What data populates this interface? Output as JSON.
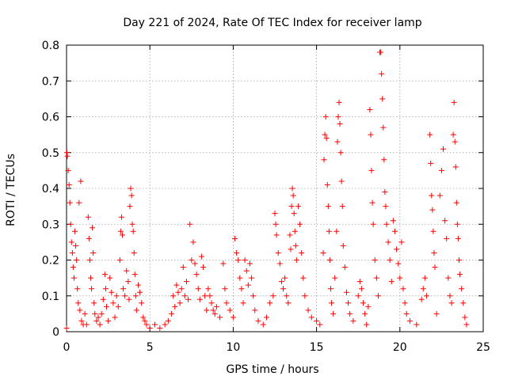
{
  "chart_data": {
    "type": "scatter",
    "title": "Day 221 of 2024, Rate Of TEC Index for receiver lamp",
    "xlabel": "GPS time / hours",
    "ylabel": "ROTI / TECUs",
    "xlim": [
      0,
      25
    ],
    "ylim": [
      0,
      0.8
    ],
    "xticks": [
      0,
      5,
      10,
      15,
      20,
      25
    ],
    "xtick_labels": [
      "0",
      "5",
      "10",
      "15",
      "20",
      "25"
    ],
    "yticks": [
      0,
      0.1,
      0.2,
      0.3,
      0.4,
      0.5,
      0.6,
      0.7,
      0.8
    ],
    "ytick_labels": [
      "0",
      "0.1",
      "0.2",
      "0.3",
      "0.4",
      "0.5",
      "0.6",
      "0.7",
      "0.8"
    ],
    "grid": true,
    "marker": "+",
    "color": "#ff0000",
    "series": [
      {
        "name": "ROTI",
        "points": [
          [
            0.0,
            0.01
          ],
          [
            0.02,
            0.5
          ],
          [
            0.05,
            0.49
          ],
          [
            0.1,
            0.45
          ],
          [
            0.15,
            0.41
          ],
          [
            0.2,
            0.36
          ],
          [
            0.25,
            0.3
          ],
          [
            0.3,
            0.25
          ],
          [
            0.35,
            0.22
          ],
          [
            0.4,
            0.18
          ],
          [
            0.45,
            0.15
          ],
          [
            0.5,
            0.28
          ],
          [
            0.55,
            0.24
          ],
          [
            0.6,
            0.2
          ],
          [
            0.65,
            0.12
          ],
          [
            0.7,
            0.08
          ],
          [
            0.75,
            0.36
          ],
          [
            0.8,
            0.06
          ],
          [
            0.85,
            0.42
          ],
          [
            0.9,
            0.03
          ],
          [
            1.0,
            0.02
          ],
          [
            1.1,
            0.05
          ],
          [
            1.2,
            0.02
          ],
          [
            1.3,
            0.32
          ],
          [
            1.35,
            0.26
          ],
          [
            1.4,
            0.2
          ],
          [
            1.45,
            0.15
          ],
          [
            1.5,
            0.12
          ],
          [
            1.55,
            0.29
          ],
          [
            1.6,
            0.22
          ],
          [
            1.65,
            0.08
          ],
          [
            1.7,
            0.05
          ],
          [
            1.8,
            0.03
          ],
          [
            1.9,
            0.04
          ],
          [
            2.0,
            0.02
          ],
          [
            2.1,
            0.05
          ],
          [
            2.2,
            0.09
          ],
          [
            2.3,
            0.16
          ],
          [
            2.35,
            0.12
          ],
          [
            2.4,
            0.07
          ],
          [
            2.5,
            0.03
          ],
          [
            2.6,
            0.15
          ],
          [
            2.7,
            0.11
          ],
          [
            2.8,
            0.08
          ],
          [
            2.9,
            0.04
          ],
          [
            3.0,
            0.1
          ],
          [
            3.1,
            0.07
          ],
          [
            3.2,
            0.2
          ],
          [
            3.25,
            0.28
          ],
          [
            3.3,
            0.32
          ],
          [
            3.35,
            0.27
          ],
          [
            3.4,
            0.12
          ],
          [
            3.5,
            0.1
          ],
          [
            3.6,
            0.17
          ],
          [
            3.7,
            0.14
          ],
          [
            3.75,
            0.09
          ],
          [
            3.8,
            0.35
          ],
          [
            3.85,
            0.4
          ],
          [
            3.9,
            0.38
          ],
          [
            3.95,
            0.3
          ],
          [
            4.0,
            0.28
          ],
          [
            4.05,
            0.22
          ],
          [
            4.1,
            0.16
          ],
          [
            4.15,
            0.1
          ],
          [
            4.2,
            0.06
          ],
          [
            4.3,
            0.13
          ],
          [
            4.4,
            0.11
          ],
          [
            4.5,
            0.08
          ],
          [
            4.6,
            0.04
          ],
          [
            4.7,
            0.03
          ],
          [
            4.8,
            0.02
          ],
          [
            5.0,
            0.01
          ],
          [
            5.3,
            0.02
          ],
          [
            5.6,
            0.01
          ],
          [
            5.9,
            0.02
          ],
          [
            6.1,
            0.03
          ],
          [
            6.3,
            0.05
          ],
          [
            6.4,
            0.1
          ],
          [
            6.5,
            0.07
          ],
          [
            6.6,
            0.13
          ],
          [
            6.7,
            0.11
          ],
          [
            6.8,
            0.08
          ],
          [
            6.9,
            0.12
          ],
          [
            7.0,
            0.18
          ],
          [
            7.1,
            0.1
          ],
          [
            7.2,
            0.14
          ],
          [
            7.3,
            0.09
          ],
          [
            7.4,
            0.3
          ],
          [
            7.5,
            0.2
          ],
          [
            7.6,
            0.25
          ],
          [
            7.7,
            0.19
          ],
          [
            7.8,
            0.16
          ],
          [
            7.9,
            0.12
          ],
          [
            8.0,
            0.09
          ],
          [
            8.1,
            0.21
          ],
          [
            8.2,
            0.18
          ],
          [
            8.3,
            0.1
          ],
          [
            8.4,
            0.06
          ],
          [
            8.5,
            0.12
          ],
          [
            8.6,
            0.1
          ],
          [
            8.7,
            0.08
          ],
          [
            8.8,
            0.06
          ],
          [
            8.9,
            0.05
          ],
          [
            9.0,
            0.07
          ],
          [
            9.2,
            0.04
          ],
          [
            9.4,
            0.19
          ],
          [
            9.5,
            0.12
          ],
          [
            9.6,
            0.08
          ],
          [
            9.8,
            0.06
          ],
          [
            10.0,
            0.04
          ],
          [
            10.1,
            0.26
          ],
          [
            10.2,
            0.22
          ],
          [
            10.3,
            0.2
          ],
          [
            10.4,
            0.15
          ],
          [
            10.5,
            0.12
          ],
          [
            10.6,
            0.08
          ],
          [
            10.7,
            0.2
          ],
          [
            10.8,
            0.17
          ],
          [
            10.9,
            0.13
          ],
          [
            11.0,
            0.19
          ],
          [
            11.1,
            0.15
          ],
          [
            11.2,
            0.1
          ],
          [
            11.3,
            0.06
          ],
          [
            11.5,
            0.03
          ],
          [
            11.8,
            0.02
          ],
          [
            12.0,
            0.04
          ],
          [
            12.2,
            0.08
          ],
          [
            12.4,
            0.1
          ],
          [
            12.5,
            0.33
          ],
          [
            12.55,
            0.3
          ],
          [
            12.6,
            0.27
          ],
          [
            12.7,
            0.22
          ],
          [
            12.8,
            0.19
          ],
          [
            12.9,
            0.14
          ],
          [
            13.0,
            0.12
          ],
          [
            13.1,
            0.15
          ],
          [
            13.2,
            0.1
          ],
          [
            13.3,
            0.08
          ],
          [
            13.4,
            0.27
          ],
          [
            13.45,
            0.23
          ],
          [
            13.5,
            0.35
          ],
          [
            13.55,
            0.4
          ],
          [
            13.6,
            0.38
          ],
          [
            13.65,
            0.33
          ],
          [
            13.7,
            0.28
          ],
          [
            13.75,
            0.24
          ],
          [
            13.8,
            0.2
          ],
          [
            13.9,
            0.35
          ],
          [
            14.0,
            0.3
          ],
          [
            14.1,
            0.22
          ],
          [
            14.2,
            0.15
          ],
          [
            14.3,
            0.1
          ],
          [
            14.5,
            0.06
          ],
          [
            14.7,
            0.04
          ],
          [
            15.0,
            0.03
          ],
          [
            15.2,
            0.02
          ],
          [
            15.4,
            0.22
          ],
          [
            15.45,
            0.48
          ],
          [
            15.5,
            0.55
          ],
          [
            15.55,
            0.6
          ],
          [
            15.6,
            0.54
          ],
          [
            15.65,
            0.41
          ],
          [
            15.7,
            0.35
          ],
          [
            15.75,
            0.28
          ],
          [
            15.8,
            0.2
          ],
          [
            15.85,
            0.12
          ],
          [
            15.9,
            0.08
          ],
          [
            16.0,
            0.05
          ],
          [
            16.1,
            0.15
          ],
          [
            16.2,
            0.28
          ],
          [
            16.25,
            0.53
          ],
          [
            16.3,
            0.6
          ],
          [
            16.35,
            0.64
          ],
          [
            16.4,
            0.58
          ],
          [
            16.45,
            0.5
          ],
          [
            16.5,
            0.42
          ],
          [
            16.55,
            0.35
          ],
          [
            16.6,
            0.24
          ],
          [
            16.7,
            0.18
          ],
          [
            16.8,
            0.11
          ],
          [
            16.9,
            0.08
          ],
          [
            17.0,
            0.05
          ],
          [
            17.2,
            0.03
          ],
          [
            17.5,
            0.1
          ],
          [
            17.6,
            0.14
          ],
          [
            17.7,
            0.12
          ],
          [
            17.8,
            0.08
          ],
          [
            17.9,
            0.05
          ],
          [
            18.0,
            0.02
          ],
          [
            18.1,
            0.07
          ],
          [
            18.2,
            0.62
          ],
          [
            18.25,
            0.55
          ],
          [
            18.3,
            0.45
          ],
          [
            18.35,
            0.36
          ],
          [
            18.4,
            0.3
          ],
          [
            18.5,
            0.2
          ],
          [
            18.6,
            0.15
          ],
          [
            18.7,
            0.1
          ],
          [
            18.8,
            0.78
          ],
          [
            18.85,
            0.78
          ],
          [
            18.9,
            0.72
          ],
          [
            18.95,
            0.65
          ],
          [
            19.0,
            0.57
          ],
          [
            19.05,
            0.48
          ],
          [
            19.1,
            0.39
          ],
          [
            19.15,
            0.35
          ],
          [
            19.2,
            0.3
          ],
          [
            19.3,
            0.25
          ],
          [
            19.4,
            0.2
          ],
          [
            19.5,
            0.14
          ],
          [
            19.6,
            0.31
          ],
          [
            19.7,
            0.28
          ],
          [
            19.8,
            0.23
          ],
          [
            19.9,
            0.19
          ],
          [
            20.0,
            0.15
          ],
          [
            20.1,
            0.25
          ],
          [
            20.2,
            0.12
          ],
          [
            20.3,
            0.08
          ],
          [
            20.4,
            0.05
          ],
          [
            20.6,
            0.03
          ],
          [
            21.0,
            0.02
          ],
          [
            21.3,
            0.09
          ],
          [
            21.4,
            0.12
          ],
          [
            21.5,
            0.15
          ],
          [
            21.6,
            0.1
          ],
          [
            21.8,
            0.55
          ],
          [
            21.85,
            0.47
          ],
          [
            21.9,
            0.38
          ],
          [
            21.95,
            0.34
          ],
          [
            22.0,
            0.28
          ],
          [
            22.05,
            0.22
          ],
          [
            22.1,
            0.18
          ],
          [
            22.2,
            0.05
          ],
          [
            22.4,
            0.38
          ],
          [
            22.5,
            0.45
          ],
          [
            22.6,
            0.51
          ],
          [
            22.7,
            0.31
          ],
          [
            22.8,
            0.26
          ],
          [
            22.9,
            0.15
          ],
          [
            23.0,
            0.1
          ],
          [
            23.1,
            0.08
          ],
          [
            23.2,
            0.55
          ],
          [
            23.25,
            0.64
          ],
          [
            23.3,
            0.53
          ],
          [
            23.35,
            0.46
          ],
          [
            23.4,
            0.36
          ],
          [
            23.45,
            0.3
          ],
          [
            23.5,
            0.26
          ],
          [
            23.55,
            0.2
          ],
          [
            23.6,
            0.16
          ],
          [
            23.7,
            0.12
          ],
          [
            23.8,
            0.08
          ],
          [
            23.9,
            0.04
          ],
          [
            24.0,
            0.02
          ]
        ]
      }
    ]
  }
}
